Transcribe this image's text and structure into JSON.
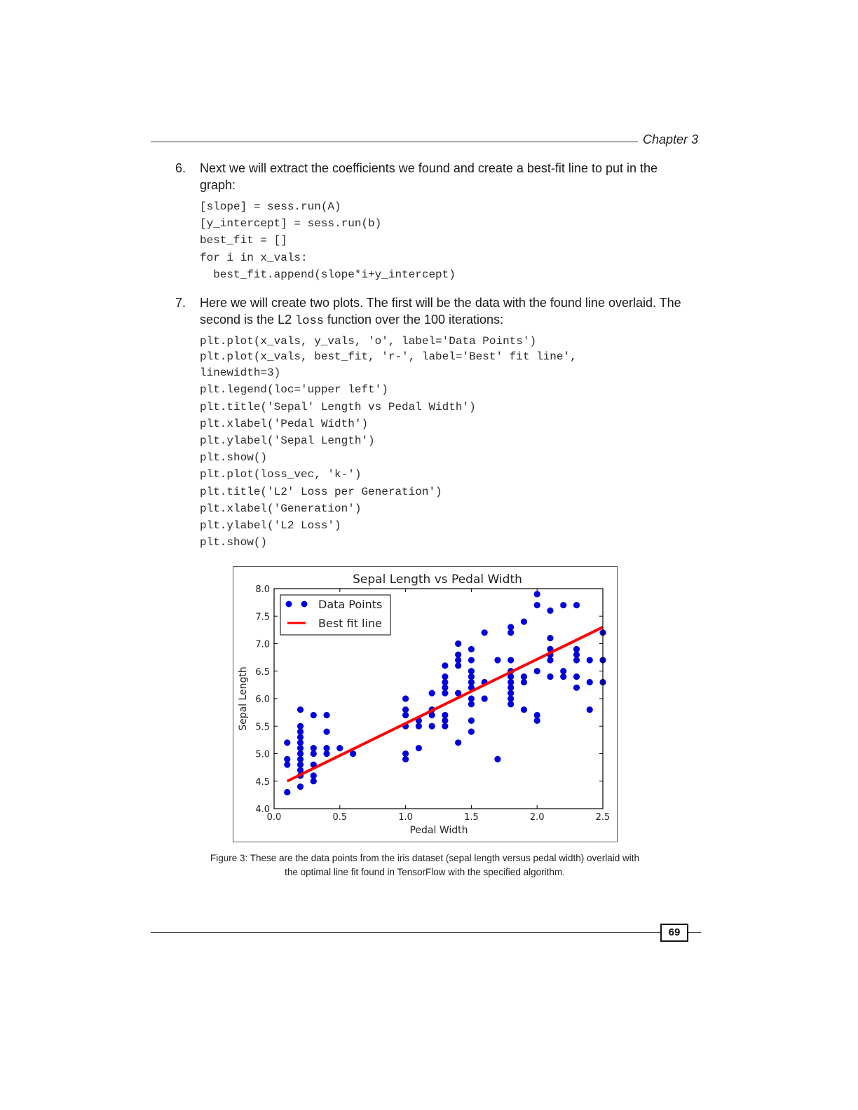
{
  "header": {
    "chapter": "Chapter 3"
  },
  "steps": [
    {
      "number": "6.",
      "text": "Next we will extract the coefficients we found and create a best-fit line to put in the graph:"
    },
    {
      "number": "7.",
      "text_before": "Here we will create two plots. The first will be the data with the found line overlaid. The second is the L2 ",
      "code_word": "loss",
      "text_after": " function over the 100 iterations:"
    }
  ],
  "code_blocks": [
    [
      "[slope] = sess.run(A)",
      "[y_intercept] = sess.run(b)",
      "best_fit = []",
      "for i in x_vals:",
      "  best_fit.append(slope*i+y_intercept)"
    ],
    [
      "plt.plot(x_vals, y_vals, 'o', label='Data Points')",
      "plt.plot(x_vals, best_fit, 'r-', label='Best' fit line',",
      "linewidth=3)",
      "plt.legend(loc='upper left')",
      "plt.title('Sepal' Length vs Pedal Width')",
      "plt.xlabel('Pedal Width')",
      "plt.ylabel('Sepal Length')",
      "plt.show()",
      "plt.plot(loss_vec, 'k-')",
      "plt.title('L2' Loss per Generation')",
      "plt.xlabel('Generation')",
      "plt.ylabel('L2 Loss')",
      "plt.show()"
    ]
  ],
  "chart_data": {
    "type": "scatter",
    "title": "Sepal Length vs Pedal Width",
    "xlabel": "Pedal Width",
    "ylabel": "Sepal Length",
    "xlim": [
      0.0,
      2.5
    ],
    "ylim": [
      4.0,
      8.0
    ],
    "xticks": [
      "0.0",
      "0.5",
      "1.0",
      "1.5",
      "2.0",
      "2.5"
    ],
    "yticks": [
      "4.0",
      "4.5",
      "5.0",
      "5.5",
      "6.0",
      "6.5",
      "7.0",
      "7.5",
      "8.0"
    ],
    "legend_position": "upper-left",
    "grid": false,
    "series": [
      {
        "name": "Data Points",
        "kind": "points",
        "color": "#0000dd",
        "points": [
          [
            0.1,
            5.2
          ],
          [
            0.1,
            4.9
          ],
          [
            0.1,
            4.8
          ],
          [
            0.1,
            4.3
          ],
          [
            0.2,
            5.8
          ],
          [
            0.2,
            5.5
          ],
          [
            0.2,
            5.4
          ],
          [
            0.2,
            5.3
          ],
          [
            0.2,
            5.2
          ],
          [
            0.2,
            5.1
          ],
          [
            0.2,
            5.0
          ],
          [
            0.2,
            4.9
          ],
          [
            0.2,
            4.8
          ],
          [
            0.2,
            4.7
          ],
          [
            0.2,
            4.6
          ],
          [
            0.2,
            4.4
          ],
          [
            0.3,
            5.7
          ],
          [
            0.3,
            5.1
          ],
          [
            0.3,
            5.0
          ],
          [
            0.3,
            4.8
          ],
          [
            0.3,
            4.6
          ],
          [
            0.3,
            4.5
          ],
          [
            0.4,
            5.7
          ],
          [
            0.4,
            5.4
          ],
          [
            0.4,
            5.1
          ],
          [
            0.4,
            5.0
          ],
          [
            0.5,
            5.1
          ],
          [
            0.6,
            5.0
          ],
          [
            1.0,
            6.0
          ],
          [
            1.0,
            5.8
          ],
          [
            1.0,
            5.7
          ],
          [
            1.0,
            5.5
          ],
          [
            1.0,
            5.0
          ],
          [
            1.0,
            4.9
          ],
          [
            1.1,
            5.6
          ],
          [
            1.1,
            5.5
          ],
          [
            1.1,
            5.1
          ],
          [
            1.2,
            6.1
          ],
          [
            1.2,
            5.8
          ],
          [
            1.2,
            5.7
          ],
          [
            1.2,
            5.5
          ],
          [
            1.3,
            6.6
          ],
          [
            1.3,
            6.4
          ],
          [
            1.3,
            6.3
          ],
          [
            1.3,
            6.2
          ],
          [
            1.3,
            6.1
          ],
          [
            1.3,
            5.7
          ],
          [
            1.3,
            5.6
          ],
          [
            1.3,
            5.5
          ],
          [
            1.4,
            7.0
          ],
          [
            1.4,
            6.8
          ],
          [
            1.4,
            6.7
          ],
          [
            1.4,
            6.6
          ],
          [
            1.4,
            6.1
          ],
          [
            1.4,
            5.2
          ],
          [
            1.5,
            6.9
          ],
          [
            1.5,
            6.7
          ],
          [
            1.5,
            6.5
          ],
          [
            1.5,
            6.4
          ],
          [
            1.5,
            6.3
          ],
          [
            1.5,
            6.2
          ],
          [
            1.5,
            6.0
          ],
          [
            1.5,
            5.9
          ],
          [
            1.5,
            5.6
          ],
          [
            1.5,
            5.4
          ],
          [
            1.6,
            7.2
          ],
          [
            1.6,
            6.3
          ],
          [
            1.6,
            6.0
          ],
          [
            1.7,
            6.7
          ],
          [
            1.7,
            4.9
          ],
          [
            1.8,
            7.3
          ],
          [
            1.8,
            7.2
          ],
          [
            1.8,
            6.7
          ],
          [
            1.8,
            6.5
          ],
          [
            1.8,
            6.4
          ],
          [
            1.8,
            6.3
          ],
          [
            1.8,
            6.2
          ],
          [
            1.8,
            6.1
          ],
          [
            1.8,
            6.0
          ],
          [
            1.8,
            5.9
          ],
          [
            1.9,
            7.4
          ],
          [
            1.9,
            6.4
          ],
          [
            1.9,
            6.3
          ],
          [
            1.9,
            5.8
          ],
          [
            2.0,
            7.9
          ],
          [
            2.0,
            7.7
          ],
          [
            2.0,
            6.5
          ],
          [
            2.0,
            5.7
          ],
          [
            2.0,
            5.6
          ],
          [
            2.1,
            7.6
          ],
          [
            2.1,
            7.1
          ],
          [
            2.1,
            6.9
          ],
          [
            2.1,
            6.8
          ],
          [
            2.1,
            6.7
          ],
          [
            2.1,
            6.4
          ],
          [
            2.2,
            7.7
          ],
          [
            2.2,
            6.5
          ],
          [
            2.2,
            6.4
          ],
          [
            2.3,
            7.7
          ],
          [
            2.3,
            6.9
          ],
          [
            2.3,
            6.8
          ],
          [
            2.3,
            6.7
          ],
          [
            2.3,
            6.4
          ],
          [
            2.3,
            6.2
          ],
          [
            2.4,
            6.7
          ],
          [
            2.4,
            6.3
          ],
          [
            2.4,
            5.8
          ],
          [
            2.5,
            7.2
          ],
          [
            2.5,
            6.7
          ],
          [
            2.5,
            6.3
          ]
        ]
      },
      {
        "name": "Best fit line",
        "kind": "line",
        "color": "#ff0000",
        "points": [
          [
            0.1,
            4.5
          ],
          [
            2.5,
            7.3
          ]
        ]
      }
    ]
  },
  "caption": "Figure 3: These are the data points from the iris dataset (sepal length versus pedal width) overlaid with the optimal line fit found in TensorFlow with the specified algorithm.",
  "footer": {
    "page_number": "69"
  }
}
